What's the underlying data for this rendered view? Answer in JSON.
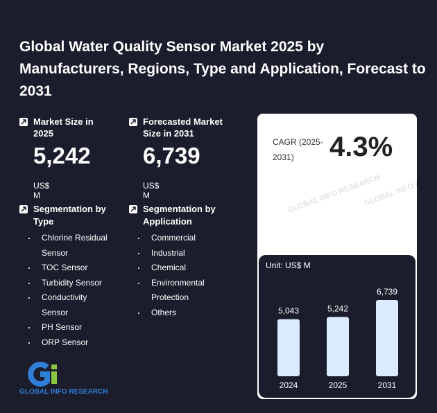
{
  "title": "Global Water Quality Sensor Market 2025 by Manufacturers, Regions, Type and Application, Forecast to 2031",
  "market_size": {
    "label": "Market Size in 2025",
    "value": "5,242",
    "unit": "US$ M"
  },
  "forecast_size": {
    "label": "Forecasted Market Size in 2031",
    "value": "6,739",
    "unit": "US$ M"
  },
  "segmentation_type": {
    "title": "Segmentation by Type",
    "items": [
      "Chlorine Residual Sensor",
      "TOC Sensor",
      "Turbidity Sensor",
      "Conductivity Sensor",
      "PH Sensor",
      "ORP Sensor"
    ]
  },
  "segmentation_application": {
    "title": "Segmentation by Application",
    "items": [
      "Commercial",
      "Industrial",
      "Chemical",
      "Environmental Protection",
      "Others"
    ]
  },
  "cagr": {
    "label": "CAGR (2025-2031)",
    "value": "4.3%"
  },
  "watermark": "GLOBAL INFO RESEARCH",
  "logo_text": "GLOBAL INFO RESEARCH",
  "colors": {
    "background": "#1b1d2c",
    "bar": "#dbeafe",
    "logo_blue": "#2f7fd6",
    "logo_green": "#8dc63f"
  },
  "chart_data": {
    "type": "bar",
    "unit_label": "Unit: US$ M",
    "categories": [
      "2024",
      "2025",
      "2031"
    ],
    "values": [
      5043,
      5242,
      6739
    ],
    "value_labels": [
      "5,043",
      "5,242",
      "6,739"
    ]
  }
}
